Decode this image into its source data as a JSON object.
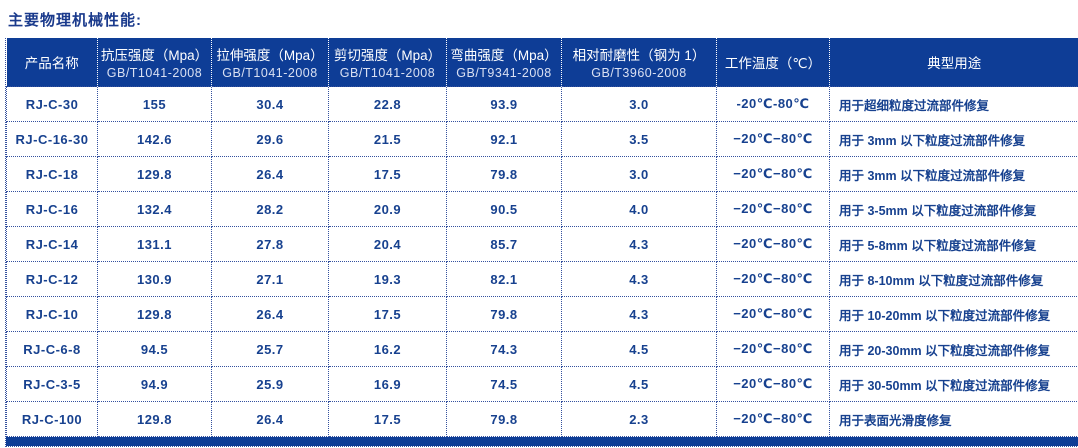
{
  "page": {
    "title": "主要物理机械性能:"
  },
  "colors": {
    "header_bg": "#0e3d96",
    "cell_text": "#17418f",
    "header_text": "#ffffff",
    "border_dotted": "#33509e"
  },
  "table": {
    "columns": [
      {
        "label": "产品名称",
        "sub": ""
      },
      {
        "label": "抗压强度（Mpa）",
        "sub": "GB/T1041-2008"
      },
      {
        "label": "拉伸强度（Mpa）",
        "sub": "GB/T1041-2008"
      },
      {
        "label": "剪切强度（Mpa）",
        "sub": "GB/T1041-2008"
      },
      {
        "label": "弯曲强度（Mpa）",
        "sub": "GB/T9341-2008"
      },
      {
        "label": "相对耐磨性（钢为 1）",
        "sub": "GB/T3960-2008"
      },
      {
        "label": "工作温度（℃）",
        "sub": ""
      },
      {
        "label": "典型用途",
        "sub": ""
      }
    ],
    "rows": [
      {
        "product": "RJ-C-30",
        "compressive": "155",
        "tensile": "30.4",
        "shear": "22.8",
        "bending": "93.9",
        "wear": "3.0",
        "temp": "-20℃-80℃",
        "use": "用于超细粒度过流部件修复"
      },
      {
        "product": "RJ-C-16-30",
        "compressive": "142.6",
        "tensile": "29.6",
        "shear": "21.5",
        "bending": "92.1",
        "wear": "3.5",
        "temp": "−20℃−80℃",
        "use": "用于 3mm 以下粒度过流部件修复"
      },
      {
        "product": "RJ-C-18",
        "compressive": "129.8",
        "tensile": "26.4",
        "shear": "17.5",
        "bending": "79.8",
        "wear": "3.0",
        "temp": "−20℃−80℃",
        "use": "用于 3mm 以下粒度过流部件修复"
      },
      {
        "product": "RJ-C-16",
        "compressive": "132.4",
        "tensile": "28.2",
        "shear": "20.9",
        "bending": "90.5",
        "wear": "4.0",
        "temp": "−20℃−80℃",
        "use": "用于 3-5mm 以下粒度过流部件修复"
      },
      {
        "product": "RJ-C-14",
        "compressive": "131.1",
        "tensile": "27.8",
        "shear": "20.4",
        "bending": "85.7",
        "wear": "4.3",
        "temp": "−20℃−80℃",
        "use": "用于 5-8mm 以下粒度过流部件修复"
      },
      {
        "product": "RJ-C-12",
        "compressive": "130.9",
        "tensile": "27.1",
        "shear": "19.3",
        "bending": "82.1",
        "wear": "4.3",
        "temp": "−20℃−80℃",
        "use": "用于 8-10mm 以下粒度过流部件修复"
      },
      {
        "product": "RJ-C-10",
        "compressive": "129.8",
        "tensile": "26.4",
        "shear": "17.5",
        "bending": "79.8",
        "wear": "4.3",
        "temp": "−20℃−80℃",
        "use": "用于 10-20mm 以下粒度过流部件修复"
      },
      {
        "product": "RJ-C-6-8",
        "compressive": "94.5",
        "tensile": "25.7",
        "shear": "16.2",
        "bending": "74.3",
        "wear": "4.5",
        "temp": "−20℃−80℃",
        "use": "用于 20-30mm 以下粒度过流部件修复"
      },
      {
        "product": "RJ-C-3-5",
        "compressive": "94.9",
        "tensile": "25.9",
        "shear": "16.9",
        "bending": "74.5",
        "wear": "4.5",
        "temp": "−20℃−80℃",
        "use": "用于 30-50mm 以下粒度过流部件修复"
      },
      {
        "product": "RJ-C-100",
        "compressive": "129.8",
        "tensile": "26.4",
        "shear": "17.5",
        "bending": "79.8",
        "wear": "2.3",
        "temp": "−20℃−80℃",
        "use": "用于表面光滑度修复"
      }
    ]
  }
}
